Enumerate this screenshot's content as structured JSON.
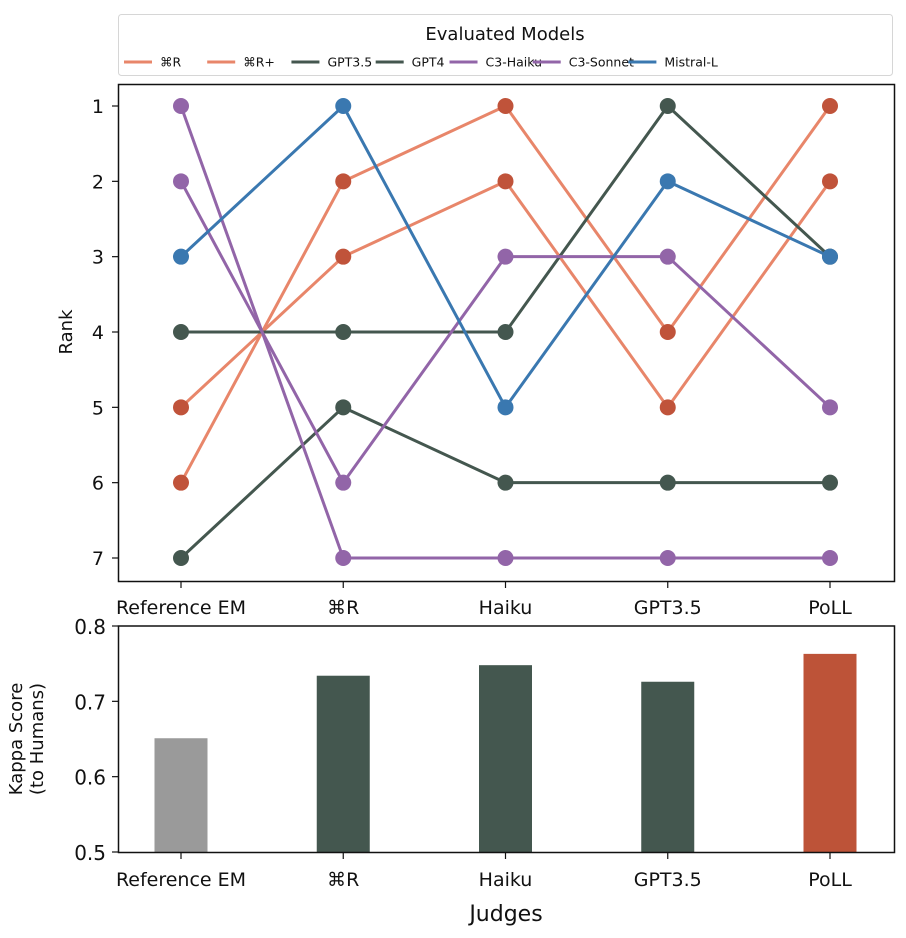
{
  "chart_data": [
    {
      "type": "line",
      "title": "",
      "xlabel": "",
      "ylabel": "Rank",
      "y_inverted": true,
      "ylim": [
        1,
        7
      ],
      "yticks": [
        "1",
        "2",
        "3",
        "4",
        "5",
        "6",
        "7"
      ],
      "categories": [
        "Reference EM",
        "⌘R",
        "Haiku",
        "GPT3.5",
        "PoLL"
      ],
      "legend": {
        "title": "Evaluated Models",
        "placement": "top",
        "columns": 7
      },
      "series": [
        {
          "name": "⌘R",
          "line_color": "#E8866A",
          "marker_color": "#C0533A",
          "values": [
            5,
            3,
            2,
            5,
            2
          ]
        },
        {
          "name": "⌘R+",
          "line_color": "#E8866A",
          "marker_color": "#C0533A",
          "values": [
            6,
            2,
            1,
            4,
            1
          ]
        },
        {
          "name": "GPT3.5",
          "line_color": "#44574F",
          "marker_color": "#44574F",
          "values": [
            4,
            4,
            4,
            1,
            3
          ]
        },
        {
          "name": "GPT4",
          "line_color": "#44574F",
          "marker_color": "#44574F",
          "values": [
            7,
            5,
            6,
            6,
            6
          ]
        },
        {
          "name": "C3-Haiku",
          "line_color": "#9265A8",
          "marker_color": "#9265A8",
          "values": [
            1,
            7,
            7,
            7,
            7
          ]
        },
        {
          "name": "C3-Sonnet",
          "line_color": "#9265A8",
          "marker_color": "#9265A8",
          "values": [
            2,
            6,
            3,
            3,
            5
          ]
        },
        {
          "name": "Mistral-L",
          "line_color": "#3A78B0",
          "marker_color": "#3A78B0",
          "values": [
            3,
            1,
            5,
            2,
            3
          ]
        }
      ]
    },
    {
      "type": "bar",
      "title": "",
      "xlabel": "Judges",
      "ylabel": "Kappa Score\n(to Humans)",
      "ylabel_lines": [
        "Kappa Score",
        "(to Humans)"
      ],
      "ylim": [
        0.5,
        0.8
      ],
      "yticks": [
        "0.5",
        "0.6",
        "0.7",
        "0.8"
      ],
      "grid": false,
      "categories": [
        "Reference EM",
        "⌘R",
        "Haiku",
        "GPT3.5",
        "PoLL"
      ],
      "values": [
        0.651,
        0.734,
        0.748,
        0.726,
        0.763
      ],
      "colors": [
        "#9A9A9A",
        "#44574F",
        "#44574F",
        "#44574F",
        "#BD5338"
      ]
    }
  ]
}
